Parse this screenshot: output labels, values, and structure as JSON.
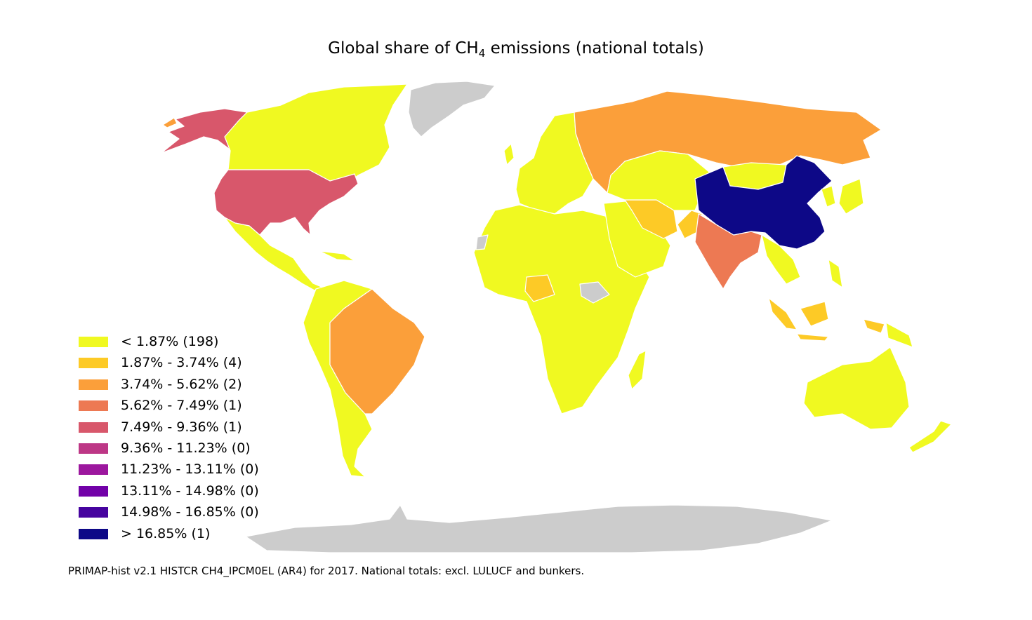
{
  "title": {
    "prefix": "Global share of CH",
    "subscript": "4",
    "suffix": " emissions (national totals)"
  },
  "legend": [
    {
      "label": "< 1.87% (198)",
      "color": "#f0f921"
    },
    {
      "label": "1.87% - 3.74% (4)",
      "color": "#fdca26"
    },
    {
      "label": "3.74% - 5.62% (2)",
      "color": "#fb9f3a"
    },
    {
      "label": "5.62% - 7.49% (1)",
      "color": "#ed7953"
    },
    {
      "label": "7.49% - 9.36% (1)",
      "color": "#d8576b"
    },
    {
      "label": "9.36% - 11.23% (0)",
      "color": "#bd3786"
    },
    {
      "label": "11.23% - 13.11% (0)",
      "color": "#9c179e"
    },
    {
      "label": "13.11% - 14.98% (0)",
      "color": "#7201a8"
    },
    {
      "label": "14.98% - 16.85% (0)",
      "color": "#46039f"
    },
    {
      "label": "> 16.85% (1)",
      "color": "#0d0887"
    }
  ],
  "no_data_color": "#cccccc",
  "source": "PRIMAP-hist v2.1 HISTCR CH4_IPCM0EL (AR4) for 2017. National totals: excl. LULUCF and bunkers."
}
